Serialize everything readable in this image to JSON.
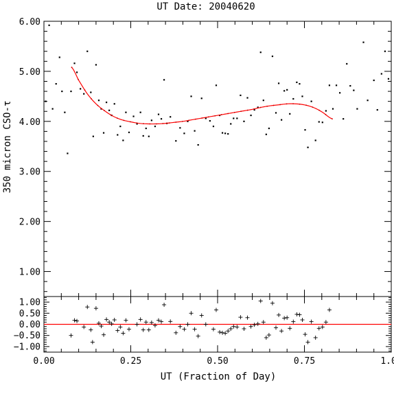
{
  "chart_data": [
    {
      "type": "scatter",
      "title": "UT Date: 20040620",
      "xlabel": "",
      "ylabel": "350 micron CSO-τ",
      "xlim": [
        0,
        1
      ],
      "ylim": [
        0.5,
        6
      ],
      "yticks": [
        1,
        2,
        3,
        4,
        5,
        6
      ],
      "ytick_labels": [
        "1.00",
        "2.00",
        "3.00",
        "4.00",
        "5.00",
        "6.00"
      ],
      "grid": false,
      "series": [
        {
          "points": [
            [
              0.005,
              4.4
            ],
            [
              0.015,
              5.92
            ],
            [
              0.025,
              4.25
            ],
            [
              0.035,
              4.75
            ],
            [
              0.045,
              5.28
            ],
            [
              0.052,
              4.6
            ],
            [
              0.06,
              4.18
            ],
            [
              0.068,
              3.36
            ],
            [
              0.078,
              4.6
            ],
            [
              0.088,
              5.16
            ],
            [
              0.095,
              4.98
            ],
            [
              0.105,
              4.65
            ],
            [
              0.115,
              4.55
            ],
            [
              0.125,
              5.4
            ],
            [
              0.135,
              4.58
            ],
            [
              0.142,
              3.7
            ],
            [
              0.15,
              5.13
            ],
            [
              0.158,
              4.42
            ],
            [
              0.165,
              4.25
            ],
            [
              0.172,
              3.77
            ],
            [
              0.18,
              4.38
            ],
            [
              0.188,
              4.22
            ],
            [
              0.195,
              4.12
            ],
            [
              0.203,
              4.35
            ],
            [
              0.212,
              3.73
            ],
            [
              0.22,
              3.9
            ],
            [
              0.228,
              3.62
            ],
            [
              0.236,
              4.18
            ],
            [
              0.245,
              3.78
            ],
            [
              0.258,
              4.1
            ],
            [
              0.268,
              3.95
            ],
            [
              0.278,
              4.18
            ],
            [
              0.286,
              3.71
            ],
            [
              0.294,
              3.86
            ],
            [
              0.302,
              3.7
            ],
            [
              0.31,
              4.02
            ],
            [
              0.32,
              3.9
            ],
            [
              0.33,
              4.14
            ],
            [
              0.338,
              4.05
            ],
            [
              0.346,
              4.83
            ],
            [
              0.354,
              3.96
            ],
            [
              0.364,
              4.09
            ],
            [
              0.38,
              3.61
            ],
            [
              0.392,
              3.87
            ],
            [
              0.404,
              3.76
            ],
            [
              0.414,
              4.0
            ],
            [
              0.424,
              4.5
            ],
            [
              0.434,
              3.81
            ],
            [
              0.444,
              3.53
            ],
            [
              0.454,
              4.46
            ],
            [
              0.466,
              4.06
            ],
            [
              0.478,
              4.01
            ],
            [
              0.488,
              3.9
            ],
            [
              0.496,
              4.72
            ],
            [
              0.506,
              4.12
            ],
            [
              0.514,
              3.77
            ],
            [
              0.522,
              3.76
            ],
            [
              0.53,
              3.75
            ],
            [
              0.538,
              3.95
            ],
            [
              0.546,
              4.06
            ],
            [
              0.556,
              4.06
            ],
            [
              0.566,
              4.52
            ],
            [
              0.576,
              4.0
            ],
            [
              0.586,
              4.47
            ],
            [
              0.596,
              4.12
            ],
            [
              0.606,
              4.23
            ],
            [
              0.616,
              4.28
            ],
            [
              0.624,
              5.38
            ],
            [
              0.632,
              4.42
            ],
            [
              0.64,
              3.74
            ],
            [
              0.648,
              3.86
            ],
            [
              0.658,
              5.3
            ],
            [
              0.668,
              4.17
            ],
            [
              0.676,
              4.76
            ],
            [
              0.684,
              4.03
            ],
            [
              0.692,
              4.61
            ],
            [
              0.7,
              4.63
            ],
            [
              0.708,
              4.15
            ],
            [
              0.718,
              4.45
            ],
            [
              0.728,
              4.78
            ],
            [
              0.736,
              4.75
            ],
            [
              0.744,
              4.5
            ],
            [
              0.752,
              3.83
            ],
            [
              0.76,
              3.48
            ],
            [
              0.77,
              4.4
            ],
            [
              0.782,
              3.62
            ],
            [
              0.792,
              3.99
            ],
            [
              0.802,
              3.98
            ],
            [
              0.812,
              4.21
            ],
            [
              0.822,
              4.72
            ],
            [
              0.832,
              4.25
            ],
            [
              0.842,
              4.72
            ],
            [
              0.852,
              4.57
            ],
            [
              0.862,
              4.05
            ],
            [
              0.872,
              5.15
            ],
            [
              0.882,
              4.71
            ],
            [
              0.892,
              4.62
            ],
            [
              0.902,
              4.25
            ],
            [
              0.92,
              5.58
            ],
            [
              0.932,
              4.42
            ],
            [
              0.95,
              4.82
            ],
            [
              0.96,
              4.23
            ],
            [
              0.972,
              4.95
            ],
            [
              0.982,
              5.4
            ],
            [
              0.992,
              4.85
            ]
          ]
        },
        {
          "fit_x_range": [
            0.08,
            0.83
          ],
          "fit_samples": [
            [
              0.08,
              5.08
            ],
            [
              0.1,
              4.82
            ],
            [
              0.125,
              4.55
            ],
            [
              0.15,
              4.35
            ],
            [
              0.175,
              4.21
            ],
            [
              0.2,
              4.1
            ],
            [
              0.225,
              4.03
            ],
            [
              0.25,
              3.99
            ],
            [
              0.275,
              3.96
            ],
            [
              0.3,
              3.95
            ],
            [
              0.325,
              3.95
            ],
            [
              0.35,
              3.96
            ],
            [
              0.375,
              3.98
            ],
            [
              0.4,
              4.0
            ],
            [
              0.425,
              4.03
            ],
            [
              0.45,
              4.06
            ],
            [
              0.475,
              4.09
            ],
            [
              0.5,
              4.12
            ],
            [
              0.525,
              4.15
            ],
            [
              0.55,
              4.18
            ],
            [
              0.575,
              4.21
            ],
            [
              0.6,
              4.24
            ],
            [
              0.625,
              4.28
            ],
            [
              0.65,
              4.31
            ],
            [
              0.675,
              4.33
            ],
            [
              0.7,
              4.35
            ],
            [
              0.725,
              4.35
            ],
            [
              0.75,
              4.33
            ],
            [
              0.775,
              4.28
            ],
            [
              0.8,
              4.19
            ],
            [
              0.83,
              4.05
            ]
          ]
        }
      ]
    },
    {
      "type": "scatter",
      "title": "",
      "xlabel": "UT (Fraction of Day)",
      "ylabel": "",
      "xlim": [
        0,
        1
      ],
      "ylim": [
        -1.25,
        1.25
      ],
      "xticks": [
        0,
        0.25,
        0.5,
        0.75,
        1
      ],
      "xtick_labels": [
        "0.00",
        "0.25",
        "0.50",
        "0.75",
        "1.00"
      ],
      "yticks": [
        -1,
        -0.5,
        0,
        0.5,
        1
      ],
      "ytick_labels": [
        "−1.00",
        "−0.50",
        "0.00",
        "0.50",
        "1.00"
      ],
      "zero_line": 0,
      "grid": false,
      "series": [
        {
          "points": [
            [
              0.078,
              -0.5
            ],
            [
              0.088,
              0.18
            ],
            [
              0.095,
              0.15
            ],
            [
              0.115,
              -0.12
            ],
            [
              0.125,
              0.78
            ],
            [
              0.135,
              -0.25
            ],
            [
              0.14,
              -0.8
            ],
            [
              0.15,
              0.72
            ],
            [
              0.158,
              0.05
            ],
            [
              0.165,
              -0.08
            ],
            [
              0.172,
              -0.47
            ],
            [
              0.18,
              0.22
            ],
            [
              0.188,
              0.1
            ],
            [
              0.195,
              0.02
            ],
            [
              0.203,
              0.2
            ],
            [
              0.212,
              -0.28
            ],
            [
              0.22,
              -0.12
            ],
            [
              0.228,
              -0.4
            ],
            [
              0.236,
              0.18
            ],
            [
              0.245,
              -0.22
            ],
            [
              0.268,
              0.0
            ],
            [
              0.278,
              0.22
            ],
            [
              0.286,
              -0.25
            ],
            [
              0.294,
              0.1
            ],
            [
              0.302,
              -0.25
            ],
            [
              0.31,
              0.08
            ],
            [
              0.32,
              -0.05
            ],
            [
              0.33,
              0.18
            ],
            [
              0.338,
              0.12
            ],
            [
              0.346,
              0.88
            ],
            [
              0.364,
              0.13
            ],
            [
              0.38,
              -0.38
            ],
            [
              0.392,
              -0.1
            ],
            [
              0.404,
              -0.22
            ],
            [
              0.414,
              0.0
            ],
            [
              0.424,
              0.5
            ],
            [
              0.434,
              -0.22
            ],
            [
              0.444,
              -0.53
            ],
            [
              0.454,
              0.4
            ],
            [
              0.466,
              0.0
            ],
            [
              0.488,
              -0.22
            ],
            [
              0.496,
              0.65
            ],
            [
              0.506,
              -0.35
            ],
            [
              0.514,
              -0.38
            ],
            [
              0.522,
              -0.4
            ],
            [
              0.53,
              -0.3
            ],
            [
              0.538,
              -0.2
            ],
            [
              0.546,
              -0.1
            ],
            [
              0.556,
              -0.12
            ],
            [
              0.566,
              0.32
            ],
            [
              0.576,
              -0.2
            ],
            [
              0.586,
              0.3
            ],
            [
              0.596,
              -0.1
            ],
            [
              0.606,
              -0.02
            ],
            [
              0.616,
              0.02
            ],
            [
              0.624,
              1.05
            ],
            [
              0.632,
              0.1
            ],
            [
              0.64,
              -0.6
            ],
            [
              0.648,
              -0.48
            ],
            [
              0.658,
              0.95
            ],
            [
              0.668,
              -0.15
            ],
            [
              0.676,
              0.42
            ],
            [
              0.684,
              -0.3
            ],
            [
              0.692,
              0.28
            ],
            [
              0.7,
              0.3
            ],
            [
              0.708,
              -0.18
            ],
            [
              0.718,
              0.12
            ],
            [
              0.728,
              0.45
            ],
            [
              0.736,
              0.43
            ],
            [
              0.744,
              0.2
            ],
            [
              0.752,
              -0.45
            ],
            [
              0.76,
              -0.8
            ],
            [
              0.77,
              0.12
            ],
            [
              0.782,
              -0.6
            ],
            [
              0.792,
              -0.18
            ],
            [
              0.802,
              -0.12
            ],
            [
              0.812,
              0.1
            ],
            [
              0.822,
              0.65
            ]
          ]
        }
      ]
    }
  ]
}
